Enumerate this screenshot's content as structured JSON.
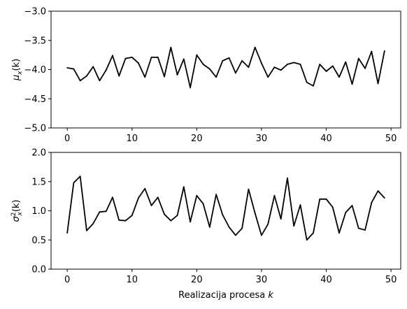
{
  "chart_data": [
    {
      "type": "line",
      "title": "",
      "xlabel": "",
      "ylabel": "μ_x(k)",
      "ylabel_parts": {
        "base": "μ",
        "sub": "x",
        "tail": "(k)"
      },
      "xlim": [
        -2.5,
        51.5
      ],
      "ylim": [
        -5.0,
        -3.0
      ],
      "xticks": [
        0,
        10,
        20,
        30,
        40,
        50
      ],
      "yticks": [
        -5.0,
        -4.5,
        -4.0,
        -3.5,
        -3.0
      ],
      "xtick_labels": [
        "0",
        "10",
        "20",
        "30",
        "40",
        "50"
      ],
      "ytick_labels": [
        "−5.0",
        "−4.5",
        "−4.0",
        "−3.5",
        "−3.0"
      ],
      "grid": false,
      "color": "#000000",
      "series": [
        {
          "x": [
            0,
            1,
            2,
            3,
            4,
            5,
            6,
            7,
            8,
            9,
            10,
            11,
            12,
            13,
            14,
            15,
            16,
            17,
            18,
            19,
            20,
            21,
            22,
            23,
            24,
            25,
            26,
            27,
            28,
            29,
            30,
            31,
            32,
            33,
            34,
            35,
            36,
            37,
            38,
            39,
            40,
            41,
            42,
            43,
            44,
            45,
            46,
            47,
            48,
            49
          ],
          "values": [
            -3.97,
            -3.99,
            -4.19,
            -4.11,
            -3.95,
            -4.19,
            -4.01,
            -3.76,
            -4.11,
            -3.81,
            -3.79,
            -3.89,
            -4.13,
            -3.79,
            -3.79,
            -4.12,
            -3.62,
            -4.09,
            -3.82,
            -4.31,
            -3.75,
            -3.91,
            -3.99,
            -4.13,
            -3.85,
            -3.8,
            -4.06,
            -3.85,
            -3.96,
            -3.62,
            -3.89,
            -4.13,
            -3.96,
            -4.01,
            -3.91,
            -3.88,
            -3.91,
            -4.22,
            -4.28,
            -3.91,
            -4.03,
            -3.94,
            -4.13,
            -3.87,
            -4.25,
            -3.81,
            -3.98,
            -3.69,
            -4.24,
            -3.68
          ]
        }
      ]
    },
    {
      "type": "line",
      "title": "",
      "xlabel": "Realizacija procesa k",
      "xlabel_parts": {
        "text": "Realizacija procesa ",
        "var": "k"
      },
      "ylabel": "σ²_x(k)",
      "ylabel_parts": {
        "base": "σ",
        "sup": "2",
        "sub": "x",
        "tail": "(k)"
      },
      "xlim": [
        -2.5,
        51.5
      ],
      "ylim": [
        0.0,
        2.0
      ],
      "xticks": [
        0,
        10,
        20,
        30,
        40,
        50
      ],
      "yticks": [
        0.0,
        0.5,
        1.0,
        1.5,
        2.0
      ],
      "xtick_labels": [
        "0",
        "10",
        "20",
        "30",
        "40",
        "50"
      ],
      "ytick_labels": [
        "0.0",
        "0.5",
        "1.0",
        "1.5",
        "2.0"
      ],
      "grid": false,
      "color": "#000000",
      "series": [
        {
          "x": [
            0,
            1,
            2,
            3,
            4,
            5,
            6,
            7,
            8,
            9,
            10,
            11,
            12,
            13,
            14,
            15,
            16,
            17,
            18,
            19,
            20,
            21,
            22,
            23,
            24,
            25,
            26,
            27,
            28,
            29,
            30,
            31,
            32,
            33,
            34,
            35,
            36,
            37,
            38,
            39,
            40,
            41,
            42,
            43,
            44,
            45,
            46,
            47,
            48,
            49
          ],
          "values": [
            0.62,
            1.48,
            1.59,
            0.66,
            0.78,
            0.98,
            0.99,
            1.23,
            0.84,
            0.83,
            0.92,
            1.22,
            1.38,
            1.09,
            1.23,
            0.94,
            0.83,
            0.92,
            1.41,
            0.81,
            1.26,
            1.12,
            0.72,
            1.28,
            0.93,
            0.72,
            0.58,
            0.7,
            1.37,
            0.96,
            0.58,
            0.77,
            1.26,
            0.86,
            1.56,
            0.74,
            1.1,
            0.5,
            0.62,
            1.2,
            1.2,
            1.06,
            0.62,
            0.97,
            1.09,
            0.7,
            0.67,
            1.14,
            1.34,
            1.22
          ]
        }
      ]
    }
  ]
}
